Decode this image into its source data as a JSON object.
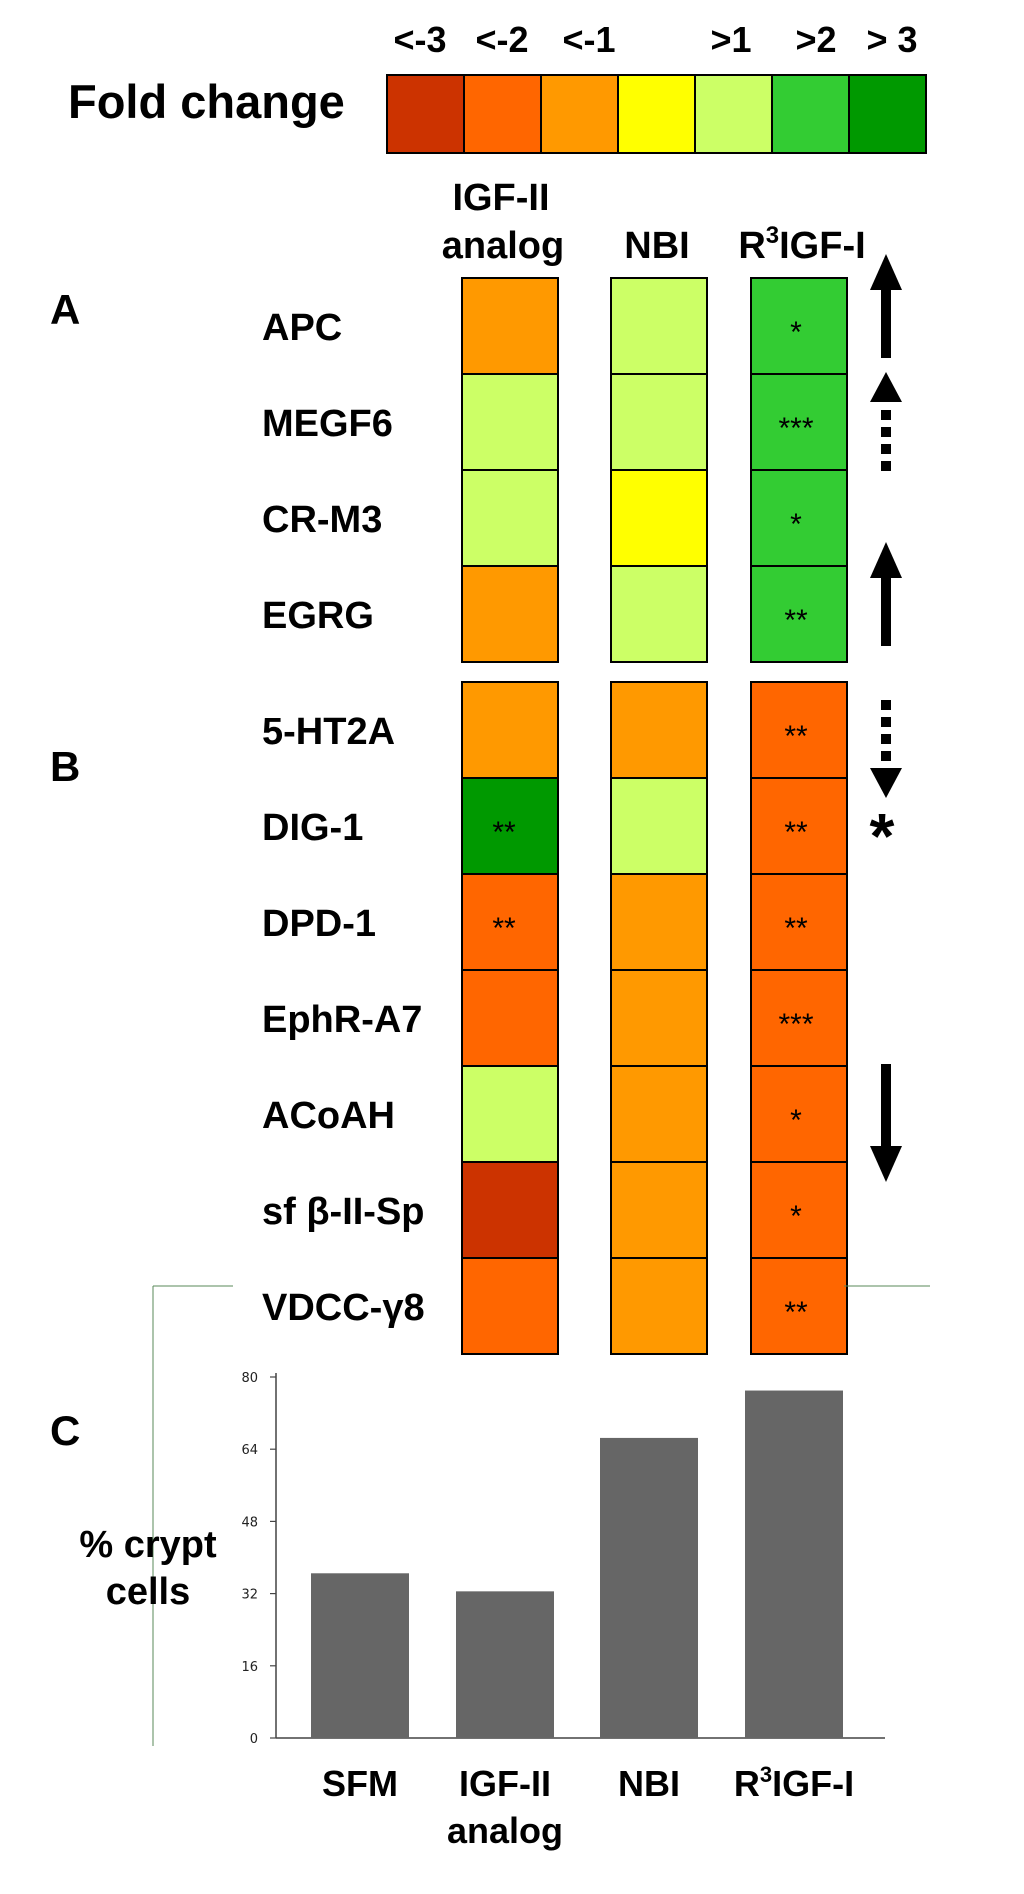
{
  "legend": {
    "title": "Fold change",
    "tick_labels": [
      "<-3",
      "<-2",
      "<-1",
      "",
      ">1",
      ">2",
      "> 3"
    ],
    "colors": [
      "#cc3300",
      "#ff6600",
      "#ff9900",
      "#ffff00",
      "#ccff66",
      "#33cc33",
      "#009900"
    ]
  },
  "panel_labels": {
    "a": "A",
    "b": "B",
    "c": "C"
  },
  "columns": [
    {
      "line1": "IGF-II",
      "line2": "analog"
    },
    {
      "line1": "NBI",
      "line2": ""
    },
    {
      "line1": "R",
      "sup": "3",
      "rest": "IGF-I"
    }
  ],
  "heatmap": {
    "genes": [
      "APC",
      "MEGF6",
      "CR-M3",
      "EGRG",
      "5-HT2A",
      "DIG-1",
      "DPD-1",
      "EphR-A7",
      "ACoAH",
      "sf β-II-Sp",
      "VDCC-γ8"
    ],
    "groups": [
      {
        "panel": "A",
        "rows": [
          0,
          1,
          2,
          3
        ]
      },
      {
        "panel": "B",
        "rows": [
          4,
          5,
          6,
          7,
          8,
          9,
          10
        ]
      }
    ],
    "level_legend": "fold-change level index into legend.colors (0 = <-3 ... 6 = > 3)",
    "levels": [
      [
        2,
        4,
        5
      ],
      [
        4,
        4,
        5
      ],
      [
        4,
        3,
        5
      ],
      [
        2,
        4,
        5
      ],
      [
        2,
        2,
        1
      ],
      [
        6,
        4,
        1
      ],
      [
        1,
        2,
        1
      ],
      [
        1,
        2,
        1
      ],
      [
        4,
        2,
        1
      ],
      [
        0,
        2,
        1
      ],
      [
        1,
        2,
        1
      ]
    ],
    "significance": [
      [
        "",
        "",
        "*"
      ],
      [
        "",
        "",
        "***"
      ],
      [
        "",
        "",
        "*"
      ],
      [
        "",
        "",
        "**"
      ],
      [
        "",
        "",
        "**"
      ],
      [
        "**",
        "",
        "**"
      ],
      [
        "**",
        "",
        "**"
      ],
      [
        "",
        "",
        "***"
      ],
      [
        "",
        "",
        "*"
      ],
      [
        "",
        "",
        "*"
      ],
      [
        "",
        "",
        "**"
      ]
    ],
    "side_markers": [
      {
        "type": "arrow-up-solid",
        "rows": [
          0
        ]
      },
      {
        "type": "arrow-up-dashed",
        "rows": [
          1
        ]
      },
      {
        "type": "arrow-up-solid",
        "rows": [
          3
        ]
      },
      {
        "type": "arrow-down-dashed",
        "rows": [
          4
        ]
      },
      {
        "type": "asterisk",
        "rows": [
          5
        ],
        "text": "*"
      },
      {
        "type": "arrow-down-solid",
        "rows": [
          8
        ]
      }
    ]
  },
  "chart_data": {
    "type": "bar",
    "ylabel_lines": [
      "% crypt",
      "cells"
    ],
    "categories": [
      {
        "line1": "SFM",
        "line2": ""
      },
      {
        "line1": "IGF-II",
        "line2": "analog"
      },
      {
        "line1": "NBI",
        "line2": ""
      },
      {
        "line1": "R",
        "sup": "3",
        "rest": "IGF-I"
      }
    ],
    "values": [
      36.5,
      32.5,
      66.5,
      77
    ],
    "ylim": [
      0,
      80
    ],
    "yticks": [
      0,
      16,
      32,
      48,
      64,
      80
    ],
    "bar_color": "#666666",
    "grid": false
  }
}
